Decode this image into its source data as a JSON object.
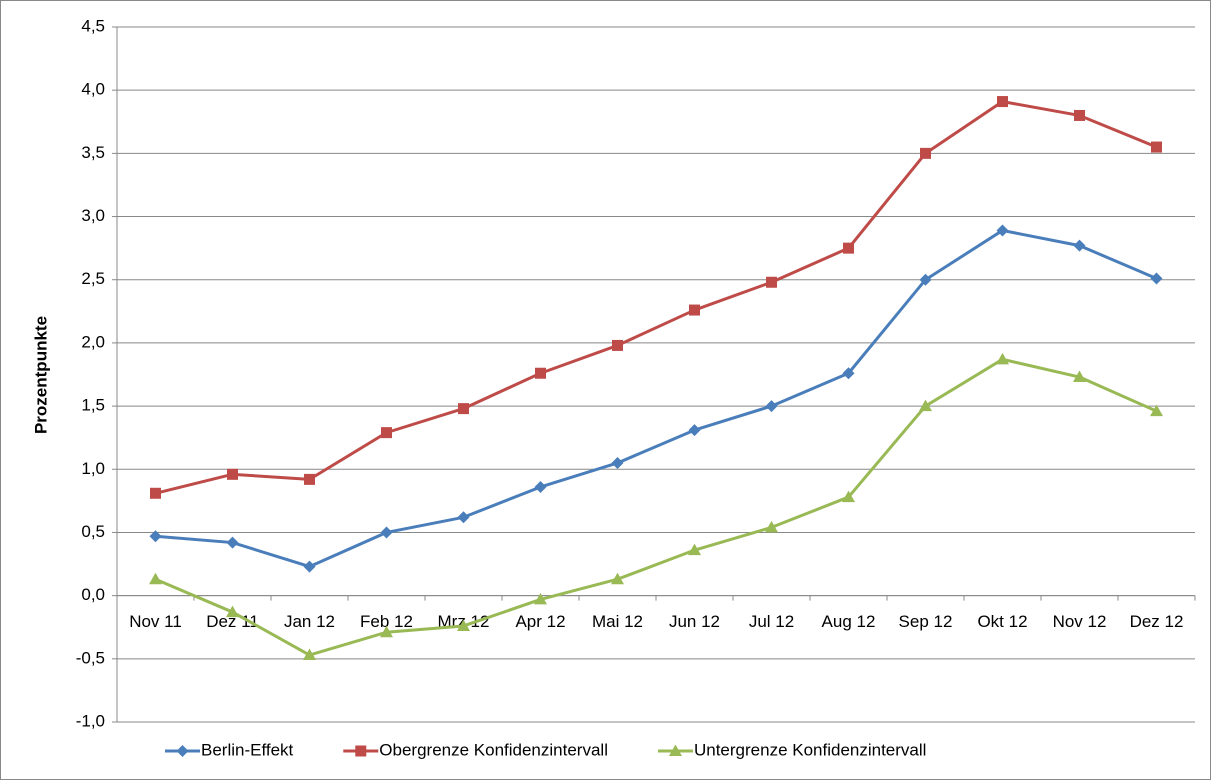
{
  "chart_data": {
    "type": "line",
    "y_label": "Prozentpunkte",
    "categories": [
      "Nov 11",
      "Dez 11",
      "Jan 12",
      "Feb 12",
      "Mrz 12",
      "Apr 12",
      "Mai 12",
      "Jun 12",
      "Jul 12",
      "Aug 12",
      "Sep 12",
      "Okt 12",
      "Nov 12",
      "Dez 12"
    ],
    "series": [
      {
        "name": "Berlin-Effekt",
        "color": "#4a7ebb",
        "marker": "diamond",
        "values": [
          0.47,
          0.42,
          0.23,
          0.5,
          0.62,
          0.86,
          1.05,
          1.31,
          1.5,
          1.76,
          2.5,
          2.89,
          2.77,
          2.51
        ]
      },
      {
        "name": "Obergrenze Konfidenzintervall",
        "color": "#be4b48",
        "marker": "square",
        "values": [
          0.81,
          0.96,
          0.92,
          1.29,
          1.48,
          1.76,
          1.98,
          2.26,
          2.48,
          2.75,
          3.5,
          3.91,
          3.8,
          3.55
        ]
      },
      {
        "name": "Untergrenze Konfidenzintervall",
        "color": "#98b954",
        "marker": "triangle",
        "values": [
          0.13,
          -0.13,
          -0.47,
          -0.29,
          -0.24,
          -0.03,
          0.13,
          0.36,
          0.54,
          0.78,
          1.5,
          1.87,
          1.73,
          1.46
        ]
      }
    ],
    "ylim": [
      -1.0,
      4.5
    ],
    "yticks": [
      {
        "value": -1.0,
        "label": "-1,0"
      },
      {
        "value": -0.5,
        "label": "-0,5"
      },
      {
        "value": 0.0,
        "label": "0,0"
      },
      {
        "value": 0.5,
        "label": "0,5"
      },
      {
        "value": 1.0,
        "label": "1,0"
      },
      {
        "value": 1.5,
        "label": "1,5"
      },
      {
        "value": 2.0,
        "label": "2,0"
      },
      {
        "value": 2.5,
        "label": "2,5"
      },
      {
        "value": 3.0,
        "label": "3,0"
      },
      {
        "value": 3.5,
        "label": "3,5"
      },
      {
        "value": 4.0,
        "label": "4,0"
      },
      {
        "value": 4.5,
        "label": "4,5"
      }
    ],
    "grid": true,
    "legend": "bottom"
  }
}
